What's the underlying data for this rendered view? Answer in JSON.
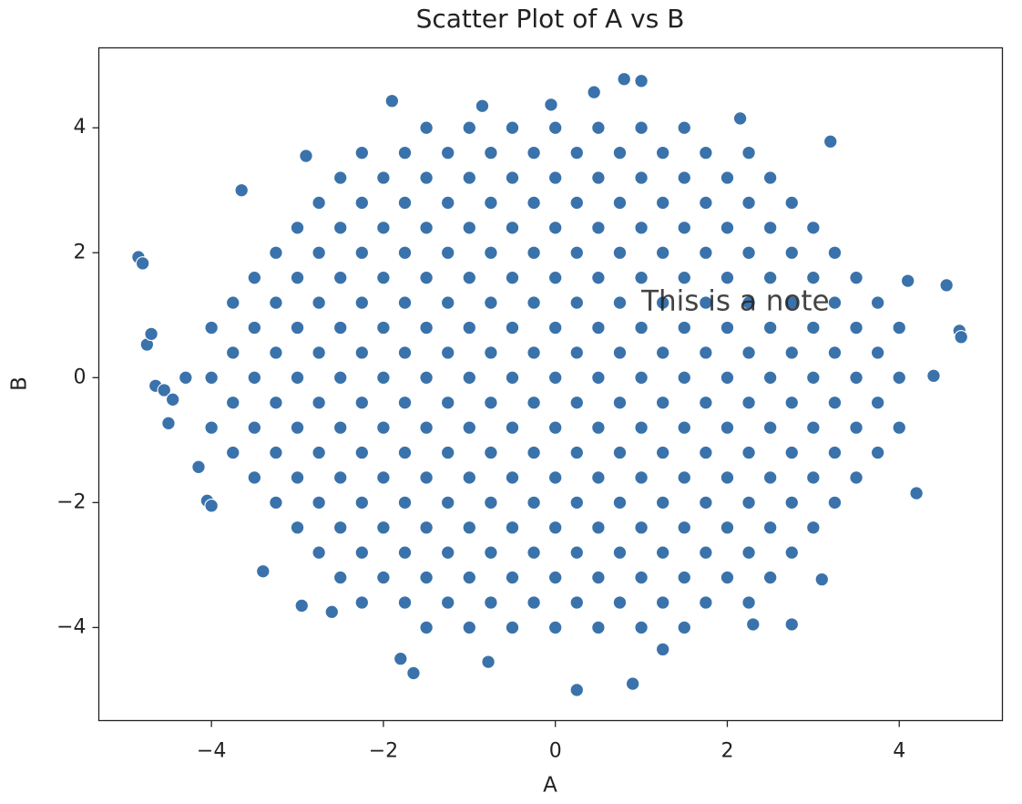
{
  "chart_data": {
    "type": "scatter",
    "title": "Scatter Plot of A vs B",
    "x_label": "A",
    "y_label": "B",
    "color": "#3a72ab",
    "xlim": [
      -5.31,
      5.2
    ],
    "ylim": [
      -5.49,
      5.28
    ],
    "xticks": [
      {
        "value": -4,
        "label": "−4"
      },
      {
        "value": -2,
        "label": "−2"
      },
      0,
      2,
      4
    ],
    "yticks": [
      {
        "value": -4,
        "label": "−4"
      },
      {
        "value": -2,
        "label": "−2"
      },
      0,
      2,
      4
    ],
    "annotations": [
      {
        "text": "This is a note",
        "x": 1,
        "y": 1,
        "color": "#d62728"
      }
    ],
    "x": [
      -1.5,
      -1,
      -0.5,
      0,
      0.5,
      1,
      1.5,
      -2.25,
      -1.75,
      -1.25,
      -0.75,
      -0.25,
      0.25,
      0.75,
      1.25,
      1.75,
      2.25,
      -2.5,
      -2,
      -1.5,
      -1,
      -0.5,
      0,
      0.5,
      1,
      1.5,
      2,
      2.5,
      -2.75,
      -2.25,
      -1.75,
      -1.25,
      -0.75,
      -0.25,
      0.25,
      0.75,
      1.25,
      1.75,
      2.25,
      2.75,
      -3,
      -2.5,
      -2,
      -1.5,
      -1,
      -0.5,
      0,
      0.5,
      1,
      1.5,
      2,
      2.5,
      3,
      -3.25,
      -2.75,
      -2.25,
      -1.75,
      -1.25,
      -0.75,
      -0.25,
      0.25,
      0.75,
      1.25,
      1.75,
      2.25,
      2.75,
      3.25,
      -3.5,
      -3,
      -2.5,
      -2,
      -1.5,
      -1,
      -0.5,
      0,
      0.5,
      1,
      1.5,
      2,
      2.5,
      3,
      3.5,
      -3.75,
      -3.25,
      -2.75,
      -2.25,
      -1.75,
      -1.25,
      -0.75,
      -0.25,
      0.25,
      0.75,
      1.25,
      1.75,
      2.25,
      2.75,
      3.25,
      3.75,
      -4,
      -3.5,
      -3,
      -2.5,
      -2,
      -1.5,
      -1,
      -0.5,
      0,
      0.5,
      1,
      1.5,
      2,
      2.5,
      3,
      3.5,
      4,
      -3.75,
      -3.25,
      -2.75,
      -2.25,
      -1.75,
      -1.25,
      -0.75,
      -0.25,
      0.25,
      0.75,
      1.25,
      1.75,
      2.25,
      2.75,
      3.25,
      3.75,
      -4,
      -3.5,
      -3,
      -2.5,
      -2,
      -1.5,
      -1,
      -0.5,
      0,
      0.5,
      1,
      1.5,
      2,
      2.5,
      3,
      3.5,
      4,
      -3.75,
      -3.25,
      -2.75,
      -2.25,
      -1.75,
      -1.25,
      -0.75,
      -0.25,
      0.25,
      0.75,
      1.25,
      1.75,
      2.25,
      2.75,
      3.25,
      3.75,
      -4,
      -3.5,
      -3,
      -2.5,
      -2,
      -1.5,
      -1,
      -0.5,
      0,
      0.5,
      1,
      1.5,
      2,
      2.5,
      3,
      3.5,
      4,
      -3.75,
      -3.25,
      -2.75,
      -2.25,
      -1.75,
      -1.25,
      -0.75,
      -0.25,
      0.25,
      0.75,
      1.25,
      1.75,
      2.25,
      2.75,
      3.25,
      3.75,
      -3.5,
      -3,
      -2.5,
      -2,
      -1.5,
      -1,
      -0.5,
      0,
      0.5,
      1,
      1.5,
      2,
      2.5,
      3,
      3.5,
      -3.25,
      -2.75,
      -2.25,
      -1.75,
      -1.25,
      -0.75,
      -0.25,
      0.25,
      0.75,
      1.25,
      1.75,
      2.25,
      2.75,
      3.25,
      -3,
      -2.5,
      -2,
      -1.5,
      -1,
      -0.5,
      0,
      0.5,
      1,
      1.5,
      2,
      2.5,
      3,
      -2.75,
      -2.25,
      -1.75,
      -1.25,
      -0.75,
      -0.25,
      0.25,
      0.75,
      1.25,
      1.75,
      2.25,
      2.75,
      -2.5,
      -2,
      -1.5,
      -1,
      -0.5,
      0,
      0.5,
      1,
      1.5,
      2,
      2.5,
      -2.25,
      -1.75,
      -1.25,
      -0.75,
      -0.25,
      0.25,
      0.75,
      1.25,
      1.75,
      2.25,
      -1.5,
      -1,
      -0.5,
      0,
      0.5,
      1,
      1.5,
      -4.85,
      -4.8,
      -4.75,
      -4.7,
      -4.65,
      -4.55,
      -4.5,
      -4.45,
      -4.3,
      -4.15,
      -4.05,
      -4.0,
      -1.9,
      -1.65,
      -1.8,
      0.25,
      0.9,
      0.8,
      1.0,
      0.45,
      3.2,
      4.7,
      4.72,
      4.55,
      4.4,
      4.2,
      4.1,
      -0.05,
      -0.78,
      1.25,
      2.75,
      2.3,
      3.1,
      -3.4,
      -2.95,
      -3.65,
      -2.9,
      2.15,
      -0.85,
      -2.6
    ],
    "y": [
      4,
      4,
      4,
      4,
      4,
      4,
      4,
      3.6,
      3.6,
      3.6,
      3.6,
      3.6,
      3.6,
      3.6,
      3.6,
      3.6,
      3.6,
      3.2,
      3.2,
      3.2,
      3.2,
      3.2,
      3.2,
      3.2,
      3.2,
      3.2,
      3.2,
      3.2,
      2.8,
      2.8,
      2.8,
      2.8,
      2.8,
      2.8,
      2.8,
      2.8,
      2.8,
      2.8,
      2.8,
      2.8,
      2.4,
      2.4,
      2.4,
      2.4,
      2.4,
      2.4,
      2.4,
      2.4,
      2.4,
      2.4,
      2.4,
      2.4,
      2.4,
      2,
      2,
      2,
      2,
      2,
      2,
      2,
      2,
      2,
      2,
      2,
      2,
      2,
      2,
      1.6,
      1.6,
      1.6,
      1.6,
      1.6,
      1.6,
      1.6,
      1.6,
      1.6,
      1.6,
      1.6,
      1.6,
      1.6,
      1.6,
      1.6,
      1.2,
      1.2,
      1.2,
      1.2,
      1.2,
      1.2,
      1.2,
      1.2,
      1.2,
      1.2,
      1.2,
      1.2,
      1.2,
      1.2,
      1.2,
      1.2,
      0.8,
      0.8,
      0.8,
      0.8,
      0.8,
      0.8,
      0.8,
      0.8,
      0.8,
      0.8,
      0.8,
      0.8,
      0.8,
      0.8,
      0.8,
      0.8,
      0.8,
      0.4,
      0.4,
      0.4,
      0.4,
      0.4,
      0.4,
      0.4,
      0.4,
      0.4,
      0.4,
      0.4,
      0.4,
      0.4,
      0.4,
      0.4,
      0.4,
      0,
      0,
      0,
      0,
      0,
      0,
      0,
      0,
      0,
      0,
      0,
      0,
      0,
      0,
      0,
      0,
      0,
      -0.4,
      -0.4,
      -0.4,
      -0.4,
      -0.4,
      -0.4,
      -0.4,
      -0.4,
      -0.4,
      -0.4,
      -0.4,
      -0.4,
      -0.4,
      -0.4,
      -0.4,
      -0.4,
      -0.8,
      -0.8,
      -0.8,
      -0.8,
      -0.8,
      -0.8,
      -0.8,
      -0.8,
      -0.8,
      -0.8,
      -0.8,
      -0.8,
      -0.8,
      -0.8,
      -0.8,
      -0.8,
      -0.8,
      -1.2,
      -1.2,
      -1.2,
      -1.2,
      -1.2,
      -1.2,
      -1.2,
      -1.2,
      -1.2,
      -1.2,
      -1.2,
      -1.2,
      -1.2,
      -1.2,
      -1.2,
      -1.2,
      -1.6,
      -1.6,
      -1.6,
      -1.6,
      -1.6,
      -1.6,
      -1.6,
      -1.6,
      -1.6,
      -1.6,
      -1.6,
      -1.6,
      -1.6,
      -1.6,
      -1.6,
      -2,
      -2,
      -2,
      -2,
      -2,
      -2,
      -2,
      -2,
      -2,
      -2,
      -2,
      -2,
      -2,
      -2,
      -2.4,
      -2.4,
      -2.4,
      -2.4,
      -2.4,
      -2.4,
      -2.4,
      -2.4,
      -2.4,
      -2.4,
      -2.4,
      -2.4,
      -2.4,
      -2.8,
      -2.8,
      -2.8,
      -2.8,
      -2.8,
      -2.8,
      -2.8,
      -2.8,
      -2.8,
      -2.8,
      -2.8,
      -2.8,
      -3.2,
      -3.2,
      -3.2,
      -3.2,
      -3.2,
      -3.2,
      -3.2,
      -3.2,
      -3.2,
      -3.2,
      -3.2,
      -3.6,
      -3.6,
      -3.6,
      -3.6,
      -3.6,
      -3.6,
      -3.6,
      -3.6,
      -3.6,
      -3.6,
      -4,
      -4,
      -4,
      -4,
      -4,
      -4,
      -4,
      1.93,
      1.83,
      0.53,
      0.7,
      -0.13,
      -0.2,
      -0.73,
      -0.35,
      0.0,
      -1.43,
      -1.97,
      -2.05,
      4.43,
      -4.73,
      -4.5,
      -5.0,
      -4.9,
      4.78,
      4.75,
      4.57,
      3.78,
      0.75,
      0.65,
      1.48,
      0.03,
      -1.85,
      1.55,
      4.37,
      -4.55,
      -4.35,
      -3.95,
      -3.95,
      -3.23,
      -3.1,
      -3.65,
      3.0,
      3.55,
      4.15,
      4.35,
      -3.75
    ]
  }
}
